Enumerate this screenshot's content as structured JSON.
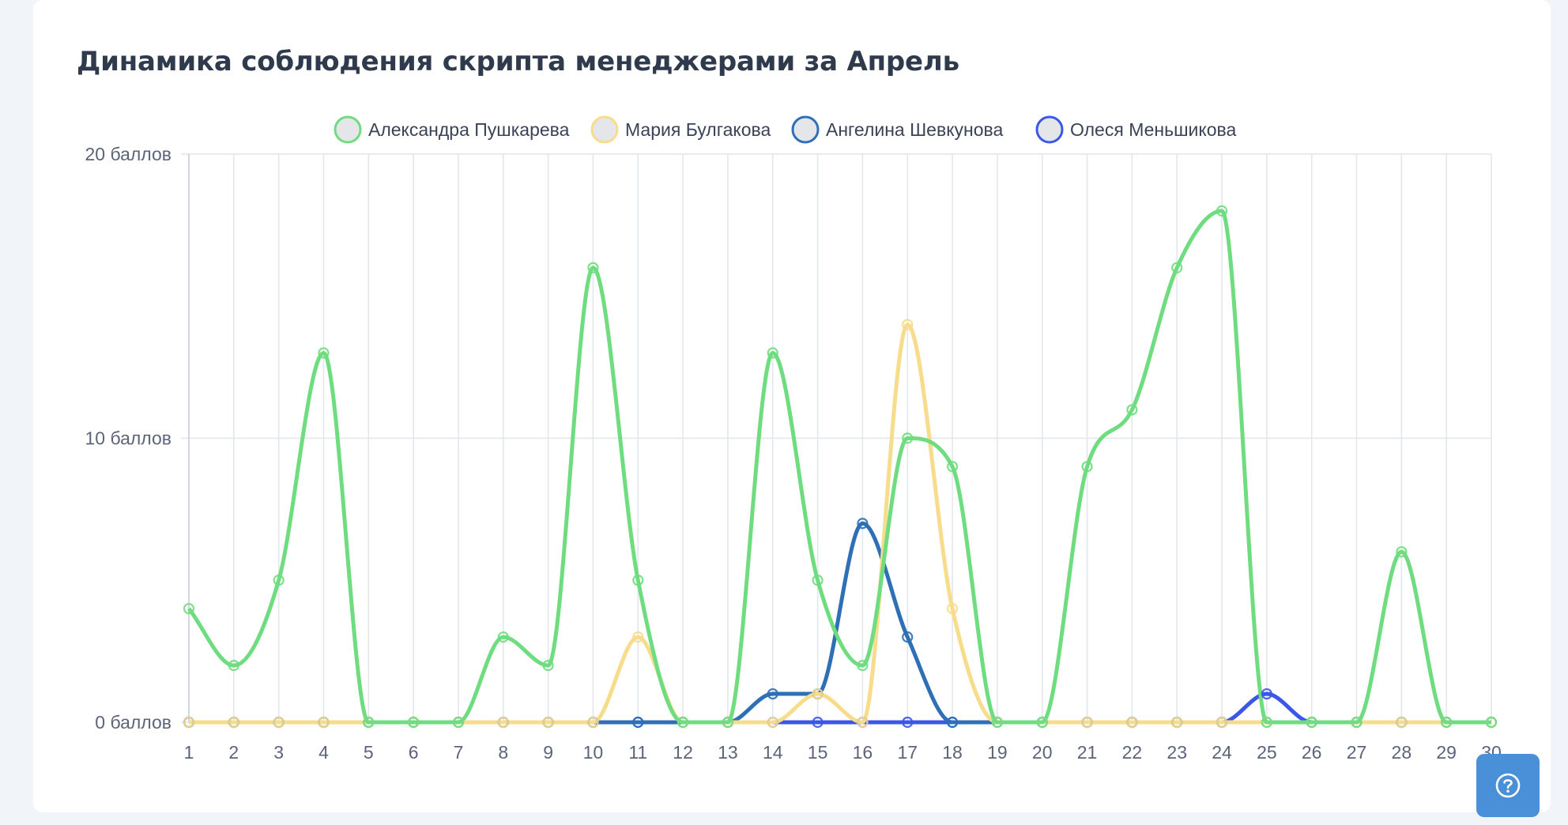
{
  "title": "Динамика соблюдения скрипта менеджерами за Апрель",
  "chart_data": {
    "type": "line",
    "title": "Динамика соблюдения скрипта менеджерами за Апрель",
    "x": [
      1,
      2,
      3,
      4,
      5,
      6,
      7,
      8,
      9,
      10,
      11,
      12,
      13,
      14,
      15,
      16,
      17,
      18,
      19,
      20,
      21,
      22,
      23,
      24,
      25,
      26,
      27,
      28,
      29,
      30
    ],
    "y_ticks": [
      "0 баллов",
      "10 баллов",
      "20 баллов"
    ],
    "ylim": [
      0,
      20
    ],
    "legend_position": "top-center",
    "grid": true,
    "series": [
      {
        "name": "Александра Пушкарева",
        "color": "#6fdd7f",
        "values": [
          4,
          2,
          5,
          13,
          0,
          0,
          0,
          3,
          2,
          16,
          5,
          0,
          0,
          13,
          5,
          2,
          10,
          9,
          0,
          0,
          9,
          11,
          16,
          18,
          0,
          0,
          0,
          6,
          0,
          0
        ]
      },
      {
        "name": "Мария Булгакова",
        "color": "#f7dc8c",
        "values": [
          0,
          0,
          0,
          0,
          0,
          0,
          0,
          0,
          0,
          0,
          3,
          0,
          0,
          0,
          1,
          0,
          14,
          4,
          0,
          0,
          0,
          0,
          0,
          0,
          0,
          0,
          0,
          0,
          0,
          0
        ]
      },
      {
        "name": "Ангелина  Шевкунова",
        "color": "#2e6fb5",
        "values": [
          0,
          0,
          0,
          0,
          0,
          0,
          0,
          0,
          0,
          0,
          0,
          0,
          0,
          1,
          1,
          7,
          3,
          0,
          0,
          0,
          0,
          0,
          0,
          0,
          0,
          0,
          0,
          0,
          0,
          0
        ]
      },
      {
        "name": "Олеся Меньшикова",
        "color": "#3b57e8",
        "values": [
          0,
          0,
          0,
          0,
          0,
          0,
          0,
          0,
          0,
          0,
          0,
          0,
          0,
          0,
          0,
          0,
          0,
          0,
          0,
          0,
          0,
          0,
          0,
          0,
          1,
          0,
          0,
          0,
          0,
          0
        ]
      }
    ]
  }
}
